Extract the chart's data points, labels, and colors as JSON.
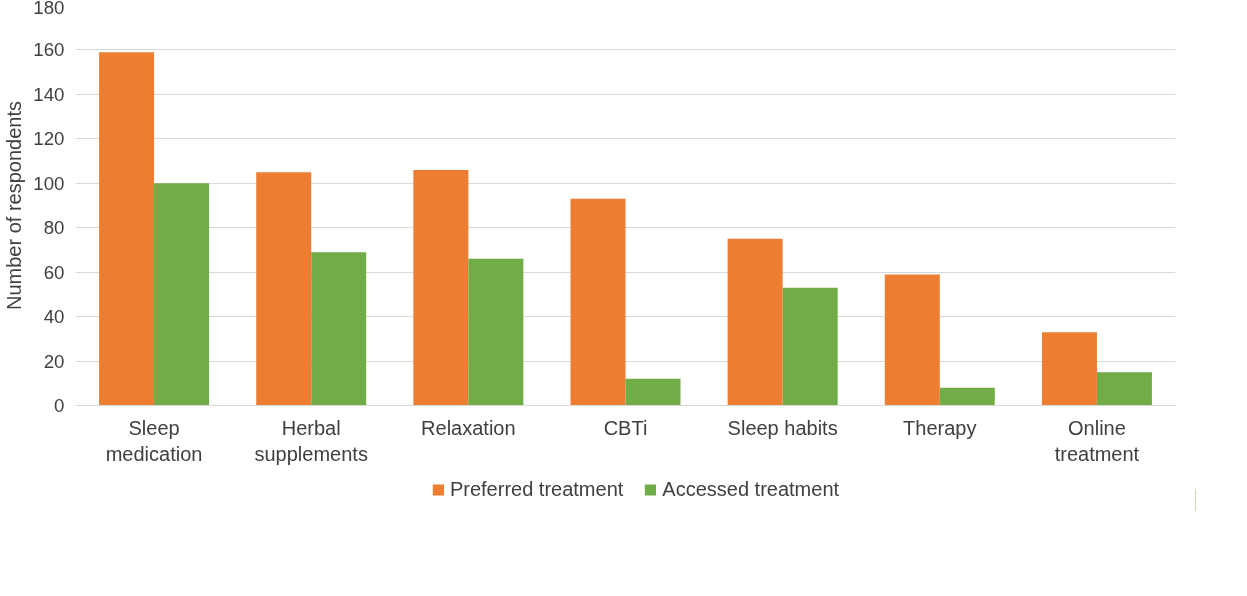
{
  "chart_data": {
    "type": "bar",
    "ylabel": "Number of respondents",
    "categories": [
      "Sleep medication",
      "Herbal supplements",
      "Relaxation",
      "CBTi",
      "Sleep habits",
      "Therapy",
      "Online treatment"
    ],
    "series": [
      {
        "name": "Preferred treatment",
        "color": "#ed7d31",
        "values": [
          159,
          105,
          106,
          93,
          75,
          59,
          33
        ]
      },
      {
        "name": "Accessed treatment",
        "color": "#70ad47",
        "values": [
          100,
          69,
          66,
          12,
          53,
          8,
          15
        ]
      }
    ],
    "ylim": [
      0,
      180
    ],
    "yticks": [
      0,
      20,
      40,
      60,
      80,
      100,
      120,
      140,
      160,
      180
    ],
    "grid": "y",
    "legend": "bottom"
  }
}
